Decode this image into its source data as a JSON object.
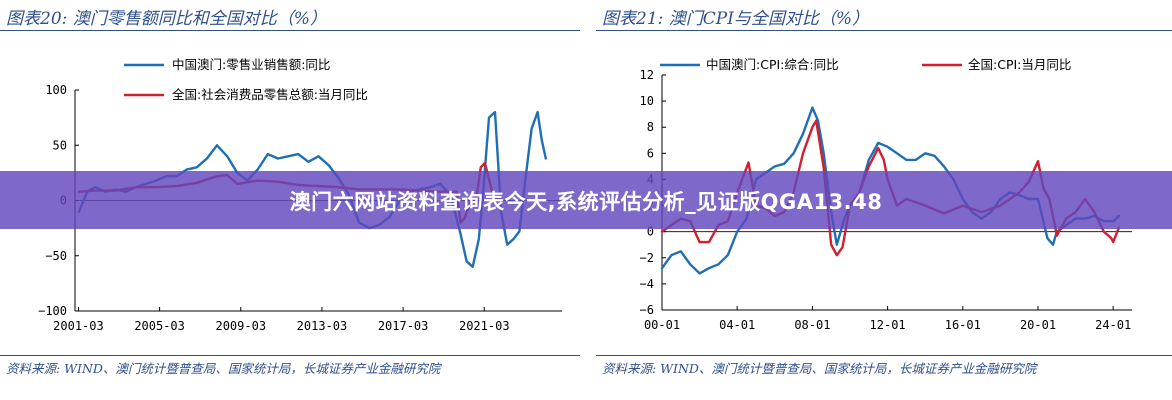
{
  "banner": {
    "text": "澳门六网站资料查询表今天,系统评估分析_见证版QGA13.48"
  },
  "colors": {
    "blue": "#1f6fb4",
    "red": "#d02030",
    "title": "#2f4f8f",
    "banner": "#6248be"
  },
  "chart_data": [
    {
      "type": "line",
      "title": "图表20:  澳门零售额同比和全国对比（%）",
      "source": "资料来源:  WIND、澳门统计暨普查局、国家统计局，长城证券产业金融研究院",
      "xlabel": "",
      "ylabel": "",
      "xlim": [
        2001.0,
        2025.0
      ],
      "ylim": [
        -100,
        100
      ],
      "yticks": [
        "100",
        "50",
        "0",
        "−50",
        "−100"
      ],
      "yticks_values": [
        100,
        50,
        0,
        -50,
        -100
      ],
      "xticks": [
        "2001-03",
        "2005-03",
        "2009-03",
        "2013-03",
        "2017-03",
        "2021-03"
      ],
      "xticks_values": [
        2001.17,
        2005.17,
        2009.17,
        2013.17,
        2017.17,
        2021.17
      ],
      "legend_position": "top-left",
      "series": [
        {
          "name": "中国澳门:零售业销售额:同比",
          "color": "#1f6fb4",
          "x": [
            2001.2,
            2001.6,
            2002.0,
            2002.5,
            2003.0,
            2003.5,
            2004.0,
            2004.5,
            2005.0,
            2005.5,
            2006.0,
            2006.5,
            2007.0,
            2007.5,
            2008.0,
            2008.5,
            2009.0,
            2009.5,
            2010.0,
            2010.5,
            2011.0,
            2011.5,
            2012.0,
            2012.5,
            2013.0,
            2013.5,
            2014.0,
            2014.5,
            2015.0,
            2015.5,
            2016.0,
            2016.5,
            2017.0,
            2017.5,
            2018.0,
            2018.5,
            2019.0,
            2019.5,
            2020.0,
            2020.3,
            2020.6,
            2020.9,
            2021.1,
            2021.4,
            2021.7,
            2022.0,
            2022.3,
            2022.6,
            2022.9,
            2023.2,
            2023.5,
            2023.8,
            2024.0,
            2024.2
          ],
          "values": [
            -10,
            8,
            12,
            8,
            10,
            8,
            12,
            15,
            18,
            22,
            22,
            28,
            30,
            38,
            50,
            40,
            25,
            18,
            28,
            42,
            38,
            40,
            42,
            35,
            40,
            32,
            20,
            5,
            -20,
            -25,
            -22,
            -15,
            0,
            8,
            10,
            12,
            15,
            5,
            -30,
            -55,
            -60,
            -35,
            5,
            75,
            80,
            -10,
            -40,
            -35,
            -28,
            20,
            65,
            80,
            55,
            38
          ]
        },
        {
          "name": "全国:社会消费品零售总额:当月同比",
          "color": "#d02030",
          "x": [
            2001.2,
            2002.0,
            2003.0,
            2004.0,
            2005.0,
            2006.0,
            2007.0,
            2008.0,
            2008.5,
            2009.0,
            2010.0,
            2011.0,
            2012.0,
            2013.0,
            2014.0,
            2015.0,
            2016.0,
            2017.0,
            2018.0,
            2019.0,
            2019.8,
            2020.0,
            2020.2,
            2020.5,
            2020.8,
            2021.0,
            2021.2,
            2021.5,
            2021.6,
            2021.8
          ],
          "values": [
            8,
            9,
            9,
            12,
            12,
            13,
            16,
            22,
            23,
            15,
            18,
            17,
            14,
            13,
            12,
            10,
            10,
            10,
            9,
            8,
            8,
            -20,
            -16,
            -1,
            5,
            30,
            34,
            12,
            5,
            2
          ]
        }
      ]
    },
    {
      "type": "line",
      "title": "图表21:  澳门CPI与全国对比（%）",
      "source": "资料来源:  WIND、澳门统计暨普查局、国家统计局，长城证券产业金融研究院",
      "xlabel": "",
      "ylabel": "",
      "xlim": [
        2000.0,
        2025.0
      ],
      "ylim": [
        -6,
        12
      ],
      "yticks": [
        "12",
        "10",
        "8",
        "6",
        "4",
        "2",
        "0",
        "−2",
        "−4",
        "−6"
      ],
      "yticks_values": [
        12,
        10,
        8,
        6,
        4,
        2,
        0,
        -2,
        -4,
        -6
      ],
      "xticks": [
        "00-01",
        "04-01",
        "08-01",
        "12-01",
        "16-01",
        "20-01",
        "24-01"
      ],
      "xticks_values": [
        2000.0,
        2004.0,
        2008.0,
        2012.0,
        2016.0,
        2020.0,
        2024.0
      ],
      "legend_position": "top",
      "series": [
        {
          "name": "中国澳门:CPI:综合:同比",
          "color": "#1f6fb4",
          "x": [
            2000.0,
            2000.5,
            2001.0,
            2001.5,
            2002.0,
            2002.5,
            2003.0,
            2003.5,
            2004.0,
            2004.5,
            2005.0,
            2005.5,
            2006.0,
            2006.5,
            2007.0,
            2007.5,
            2008.0,
            2008.3,
            2008.6,
            2009.0,
            2009.3,
            2009.7,
            2010.0,
            2010.5,
            2011.0,
            2011.5,
            2012.0,
            2012.5,
            2013.0,
            2013.5,
            2014.0,
            2014.5,
            2015.0,
            2015.5,
            2016.0,
            2016.5,
            2017.0,
            2017.5,
            2018.0,
            2018.5,
            2019.0,
            2019.5,
            2020.0,
            2020.5,
            2020.8,
            2021.0,
            2021.5,
            2022.0,
            2022.5,
            2023.0,
            2023.5,
            2024.0,
            2024.3
          ],
          "values": [
            -2.8,
            -1.8,
            -1.5,
            -2.5,
            -3.2,
            -2.8,
            -2.5,
            -1.8,
            0.0,
            1.0,
            4.0,
            4.5,
            5.0,
            5.2,
            6.0,
            7.5,
            9.5,
            8.5,
            6.0,
            1.5,
            -1.0,
            1.0,
            2.0,
            3.0,
            5.5,
            6.8,
            6.5,
            6.0,
            5.5,
            5.5,
            6.0,
            5.8,
            5.0,
            4.0,
            2.5,
            1.5,
            1.0,
            1.5,
            2.5,
            3.0,
            2.8,
            2.5,
            2.5,
            -0.5,
            -1.0,
            0.0,
            0.5,
            1.0,
            1.0,
            1.2,
            0.8,
            0.8,
            1.2
          ]
        },
        {
          "name": "全国:CPI:当月同比",
          "color": "#d02030",
          "x": [
            2000.0,
            2000.5,
            2001.0,
            2001.5,
            2002.0,
            2002.5,
            2003.0,
            2003.5,
            2004.0,
            2004.6,
            2005.0,
            2005.5,
            2006.0,
            2006.5,
            2007.0,
            2007.5,
            2008.0,
            2008.2,
            2008.6,
            2009.0,
            2009.3,
            2009.6,
            2010.0,
            2010.5,
            2011.0,
            2011.5,
            2011.8,
            2012.0,
            2012.5,
            2013.0,
            2014.0,
            2015.0,
            2016.0,
            2017.0,
            2018.0,
            2019.0,
            2019.5,
            2020.0,
            2020.3,
            2020.6,
            2020.9,
            2021.0,
            2021.5,
            2022.0,
            2022.5,
            2023.0,
            2023.5,
            2023.9,
            2024.0,
            2024.3
          ],
          "values": [
            0.0,
            0.5,
            1.0,
            0.8,
            -0.8,
            -0.8,
            0.5,
            0.8,
            3.0,
            5.3,
            2.0,
            1.8,
            1.2,
            1.5,
            3.0,
            6.0,
            8.0,
            8.5,
            4.9,
            -1.0,
            -1.8,
            -1.2,
            2.0,
            3.0,
            5.0,
            6.4,
            5.5,
            4.0,
            2.0,
            2.5,
            2.0,
            1.4,
            2.0,
            1.5,
            2.0,
            3.0,
            3.8,
            5.4,
            3.3,
            2.5,
            0.5,
            -0.3,
            1.0,
            1.5,
            2.5,
            1.5,
            0.0,
            -0.5,
            -0.8,
            0.3
          ]
        }
      ]
    }
  ]
}
